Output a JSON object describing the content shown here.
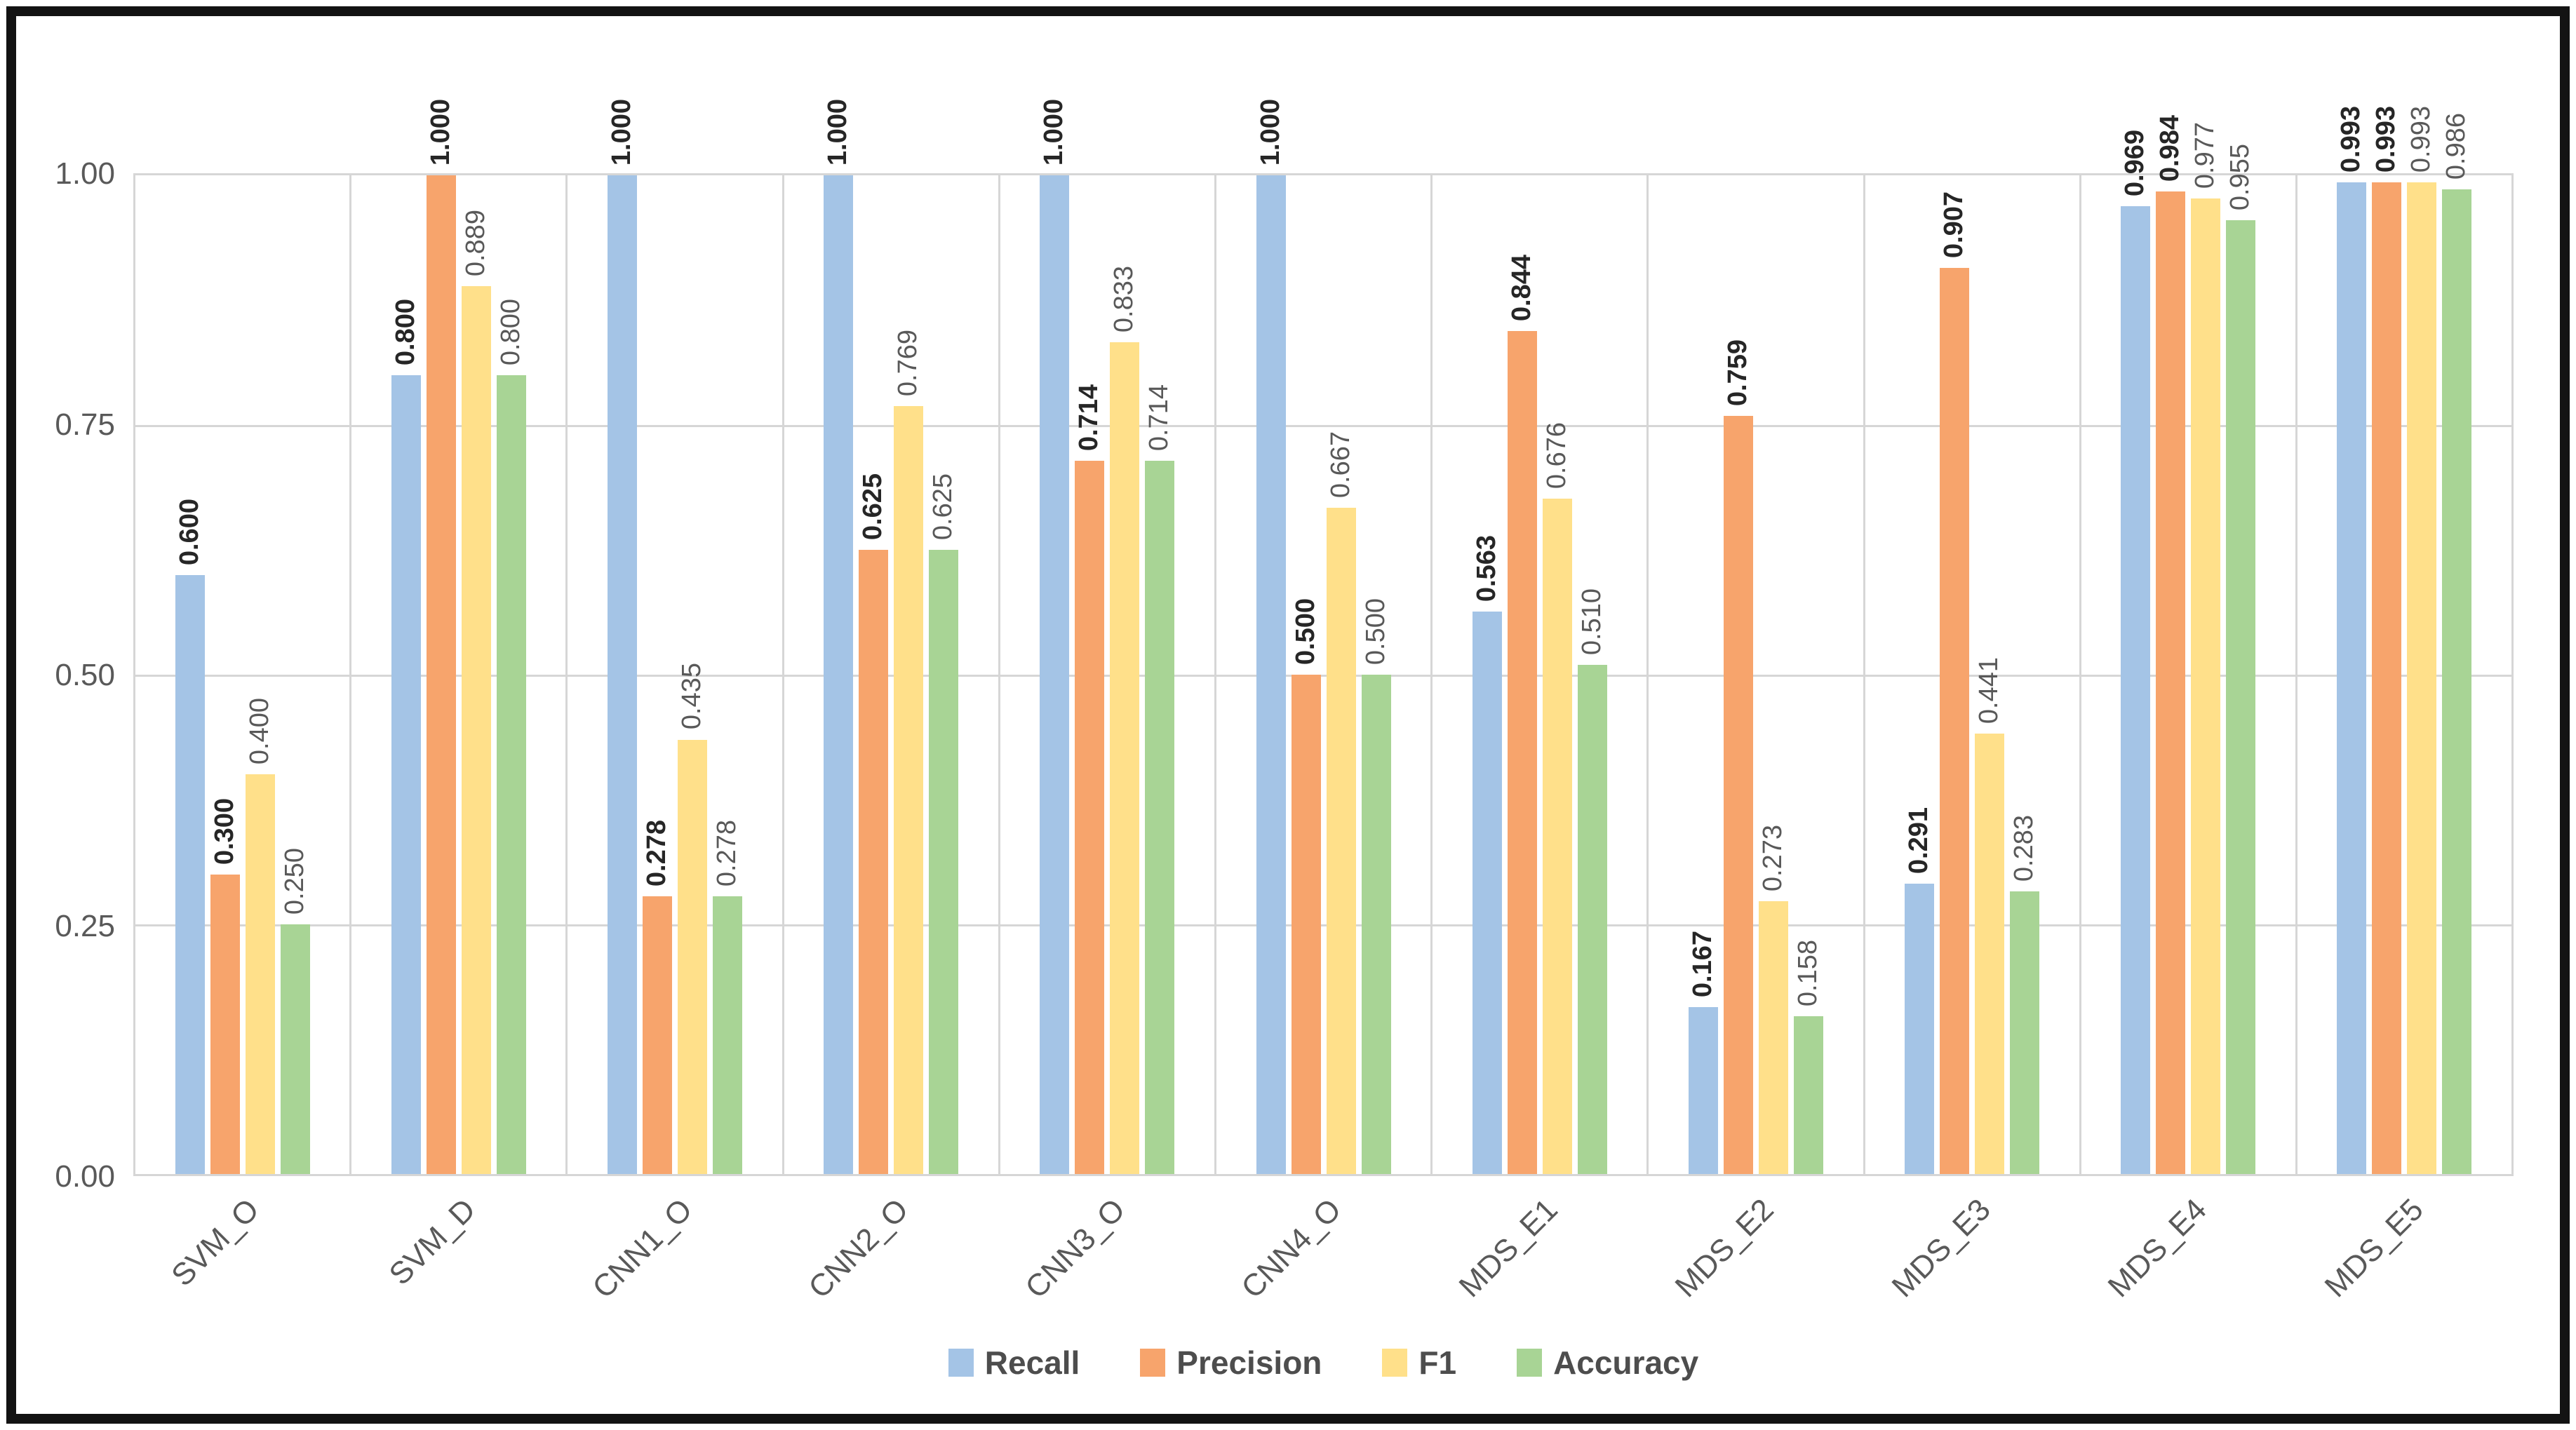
{
  "chart_data": {
    "type": "bar",
    "title": "",
    "xlabel": "",
    "ylabel": "",
    "ylim": [
      0,
      1
    ],
    "grid": true,
    "legend_position": "bottom",
    "value_label_decimals": 3,
    "y_ticks": [
      "1.00",
      "0.75",
      "0.50",
      "0.25",
      "0.00"
    ],
    "categories": [
      "SVM_O",
      "SVM_D",
      "CNN1_O",
      "CNN2_O",
      "CNN3_O",
      "CNN4_O",
      "MDS_E1",
      "MDS_E2",
      "MDS_E3",
      "MDS_E4",
      "MDS_E5"
    ],
    "series": [
      {
        "name": "Recall",
        "color": "#A4C4E6",
        "label_style": "strong",
        "values": [
          0.6,
          0.8,
          1.0,
          1.0,
          1.0,
          1.0,
          0.563,
          0.167,
          0.291,
          0.969,
          0.993
        ]
      },
      {
        "name": "Precision",
        "color": "#F7A46C",
        "label_style": "strong",
        "values": [
          0.3,
          1.0,
          0.278,
          0.625,
          0.714,
          0.5,
          0.844,
          0.759,
          0.907,
          0.984,
          0.993
        ]
      },
      {
        "name": "F1",
        "color": "#FFE08A",
        "label_style": "muted",
        "values": [
          0.4,
          0.889,
          0.435,
          0.769,
          0.833,
          0.667,
          0.676,
          0.273,
          0.441,
          0.977,
          0.993
        ]
      },
      {
        "name": "Accuracy",
        "color": "#A8D495",
        "label_style": "muted",
        "values": [
          0.25,
          0.8,
          0.278,
          0.625,
          0.714,
          0.5,
          0.51,
          0.158,
          0.283,
          0.955,
          0.986
        ]
      }
    ],
    "colors": {
      "gridline": "#d6d6d6",
      "axis_text": "#595959",
      "frame_border": "#131313"
    }
  }
}
